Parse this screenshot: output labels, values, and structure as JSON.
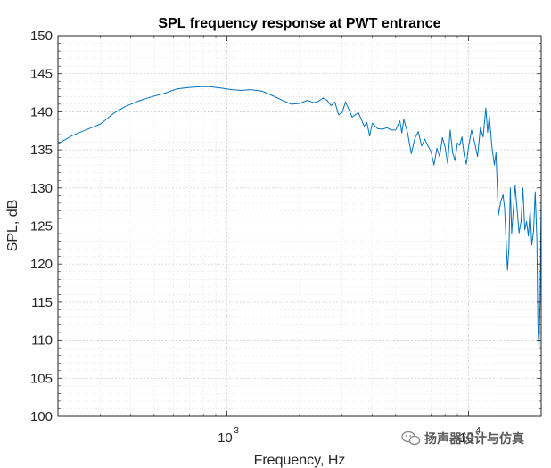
{
  "chart_data": {
    "type": "line",
    "title": "SPL frequency response at PWT entrance",
    "xlabel": "Frequency, Hz",
    "ylabel": "SPL, dB",
    "xscale": "log",
    "xlim": [
      200,
      20000
    ],
    "ylim": [
      100,
      150
    ],
    "yticks": [
      100,
      105,
      110,
      115,
      120,
      125,
      130,
      135,
      140,
      145,
      150
    ],
    "xticks": [
      {
        "value": 1000,
        "base": "10",
        "exp": "3"
      },
      {
        "value": 10000,
        "base": "10",
        "exp": "4"
      }
    ],
    "grid": true,
    "minor_grid": true,
    "line_color": "#0072BD",
    "series": [
      {
        "name": "SPL",
        "x": [
          200,
          230,
          260,
          300,
          340,
          380,
          430,
          480,
          550,
          620,
          700,
          780,
          850,
          950,
          1050,
          1150,
          1250,
          1400,
          1550,
          1700,
          1850,
          2000,
          2150,
          2300,
          2400,
          2500,
          2600,
          2700,
          2800,
          2900,
          3000,
          3100,
          3200,
          3300,
          3400,
          3500,
          3600,
          3700,
          3800,
          3900,
          4000,
          4200,
          4400,
          4600,
          4800,
          5000,
          5200,
          5300,
          5400,
          5600,
          5800,
          6000,
          6200,
          6400,
          6600,
          6800,
          7000,
          7200,
          7400,
          7600,
          7800,
          8000,
          8200,
          8400,
          8600,
          8800,
          9000,
          9200,
          9400,
          9600,
          9800,
          10000,
          10300,
          10600,
          10900,
          11200,
          11500,
          11800,
          12000,
          12200,
          12500,
          12800,
          13000,
          13300,
          13600,
          13900,
          14100,
          14300,
          14500,
          14700,
          14900,
          15100,
          15300,
          15600,
          15900,
          16200,
          16500,
          16800,
          17100,
          17400,
          17700,
          18000,
          18300,
          18600,
          18900,
          19200,
          19400,
          19600,
          19800,
          20000
        ],
        "y": [
          135.8,
          136.9,
          137.6,
          138.4,
          139.8,
          140.7,
          141.4,
          141.9,
          142.4,
          143.0,
          143.2,
          143.3,
          143.3,
          143.1,
          142.9,
          142.8,
          142.9,
          142.7,
          142.1,
          141.5,
          141.0,
          141.1,
          141.5,
          141.2,
          141.4,
          141.8,
          141.5,
          140.8,
          141.3,
          139.6,
          139.9,
          141.3,
          140.3,
          139.3,
          139.6,
          139.9,
          139.0,
          138.1,
          138.6,
          136.8,
          138.5,
          137.8,
          137.7,
          137.9,
          137.6,
          137.6,
          138.8,
          137.2,
          139.0,
          137.2,
          134.5,
          136.5,
          137.4,
          135.5,
          136.4,
          135.5,
          134.8,
          133.0,
          135.2,
          134.1,
          136.6,
          135.4,
          133.2,
          137.6,
          134.6,
          133.6,
          135.9,
          135.6,
          136.7,
          134.3,
          133.1,
          135.3,
          137.6,
          136.0,
          134.1,
          137.9,
          136.7,
          140.5,
          137.3,
          139.4,
          135.4,
          133.0,
          134.6,
          126.4,
          128.2,
          129.1,
          127.4,
          123.5,
          119.2,
          122.0,
          130.0,
          124.0,
          126.7,
          130.3,
          127.1,
          124.1,
          125.6,
          130.0,
          124.5,
          125.6,
          123.7,
          127.0,
          122.5,
          124.4,
          129.5,
          123.0,
          111.4,
          109.0,
          115.2,
          129.0
        ]
      }
    ]
  },
  "watermark": {
    "text": "扬声器设计与仿真",
    "icon": "wechat-icon"
  }
}
